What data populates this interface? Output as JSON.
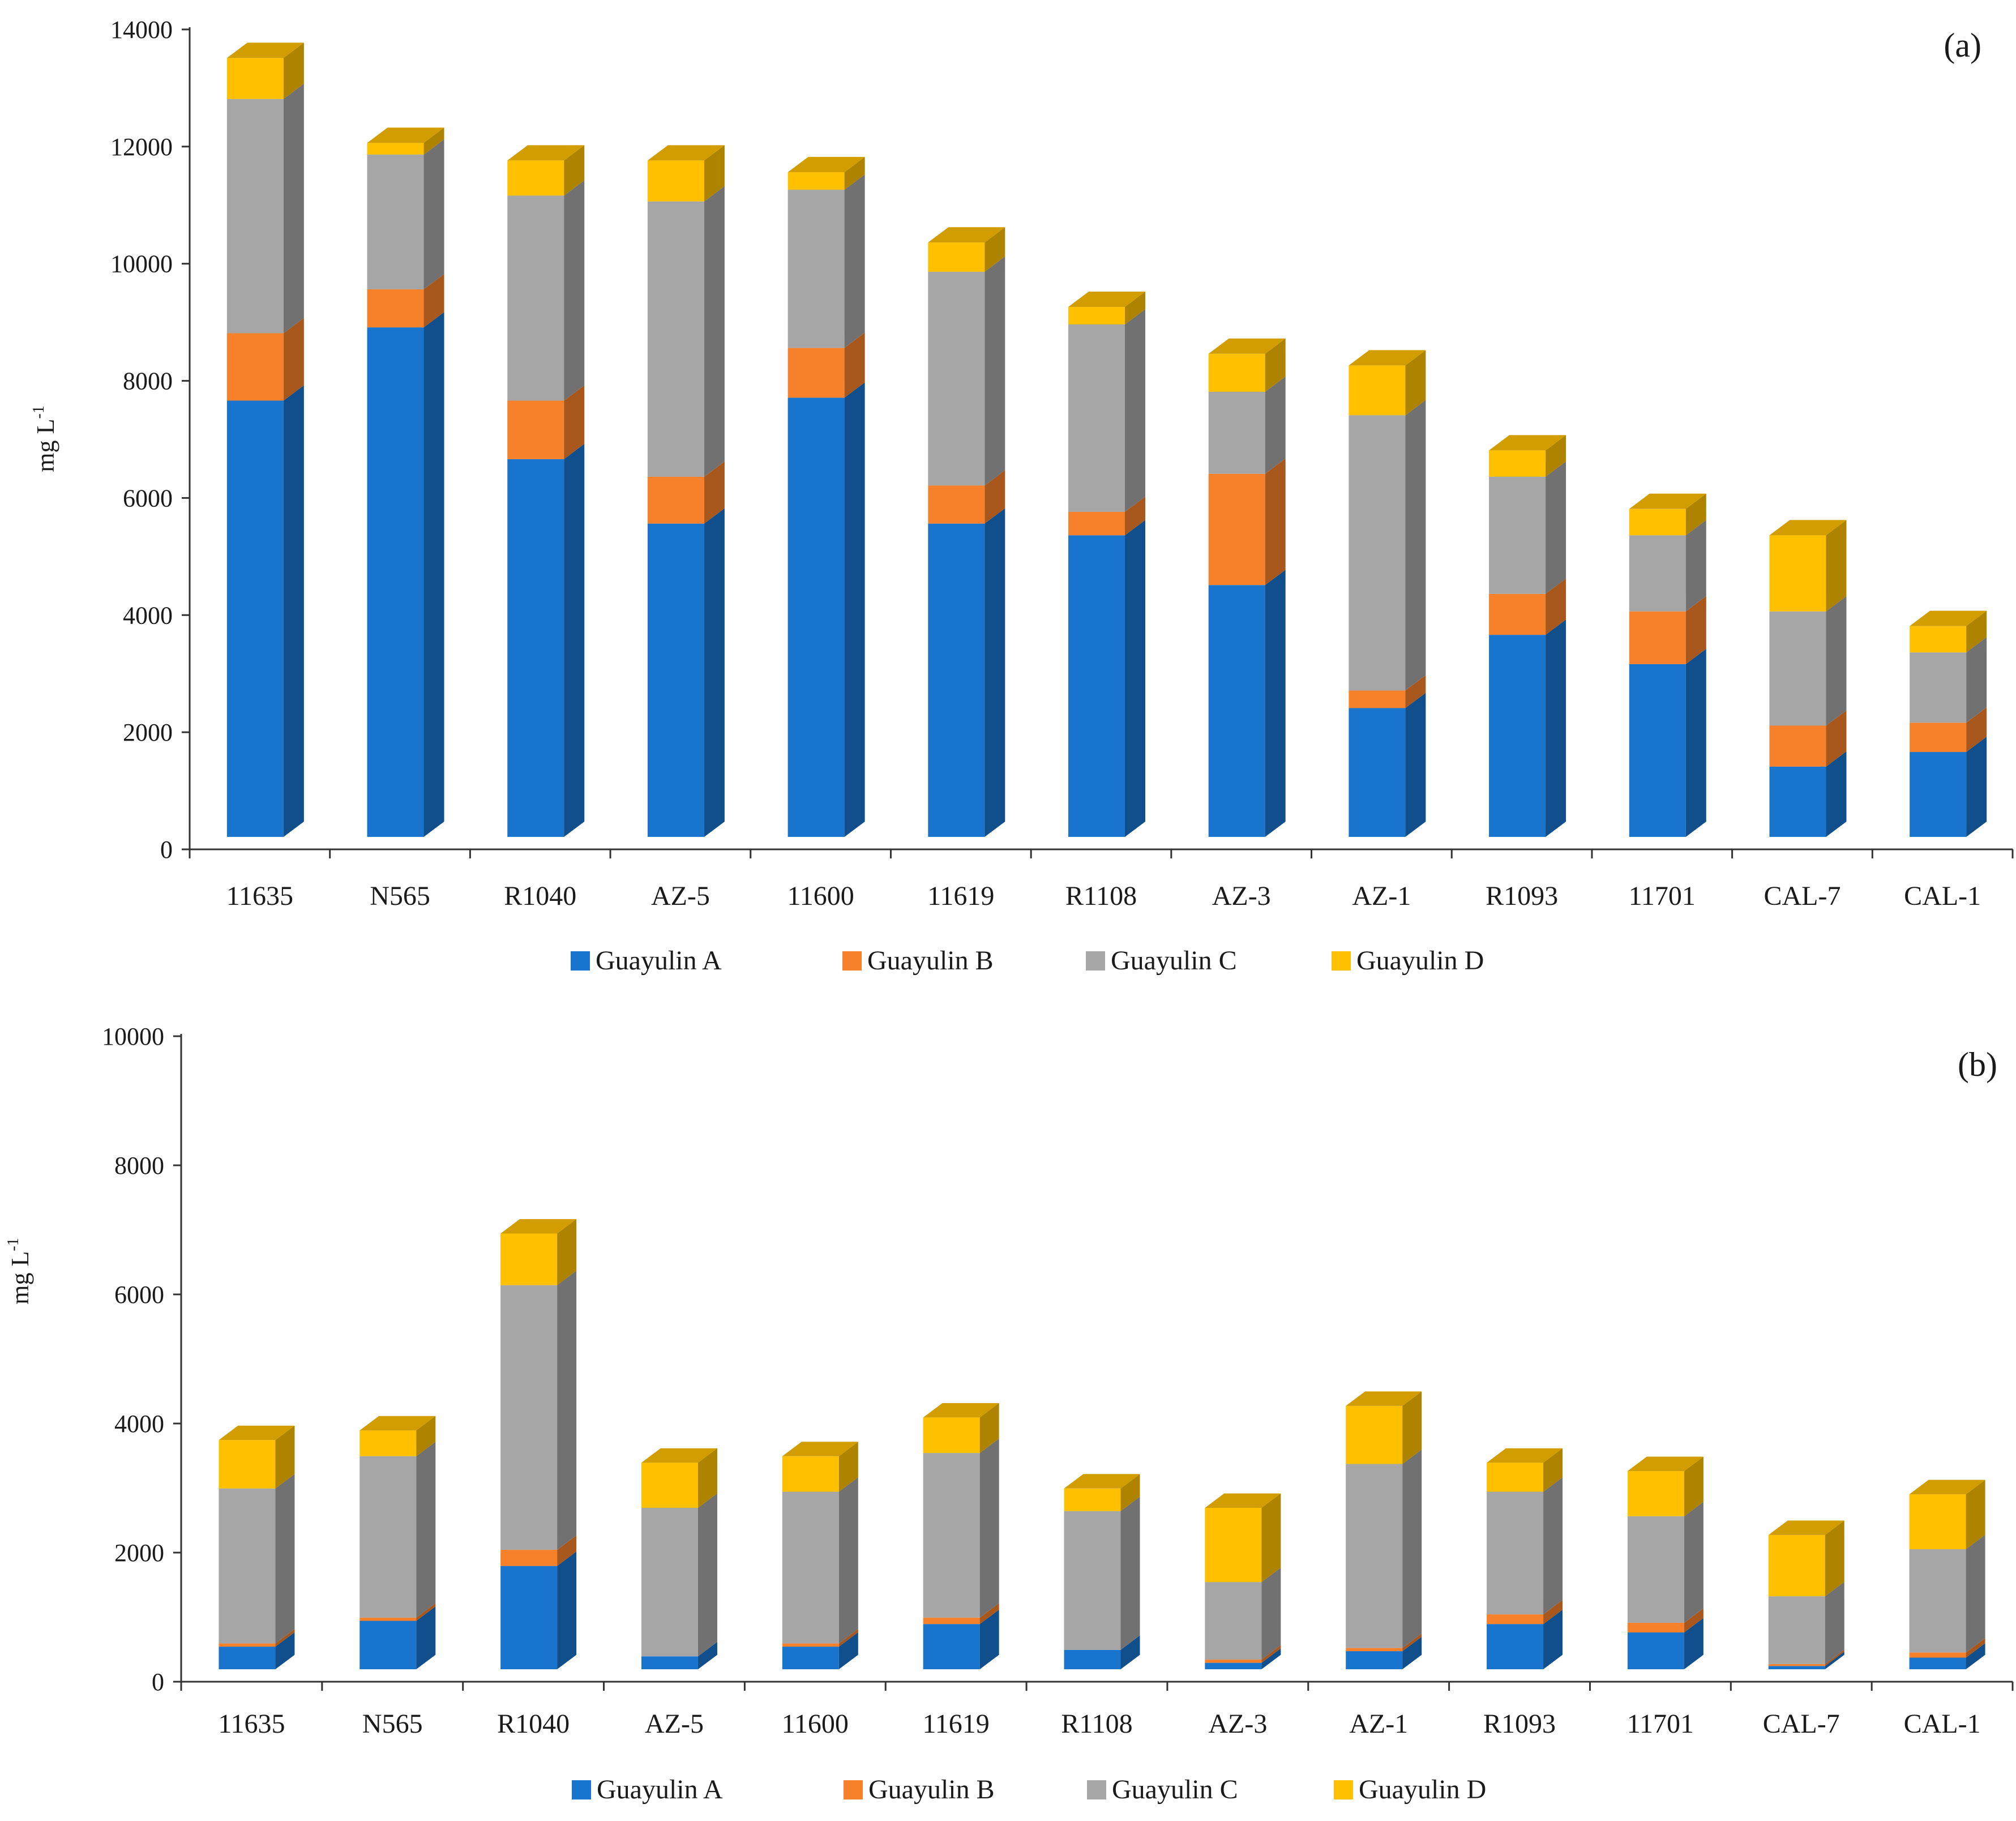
{
  "chart_data": [
    {
      "type": "bar",
      "stacked": true,
      "style": "3d",
      "panel_label": "(a)",
      "title": "",
      "xlabel": "",
      "ylabel": "mg L",
      "ylabel_superscript": "-1",
      "ylim": [
        0,
        14000
      ],
      "yticks": [
        "0",
        "2000",
        "4000",
        "6000",
        "8000",
        "10000",
        "12000",
        "14000"
      ],
      "grid": false,
      "legend_position": "bottom",
      "categories": [
        "11635",
        "N565",
        "R1040",
        "AZ-5",
        "11600",
        "11619",
        "R1108",
        "AZ-3",
        "AZ-1",
        "R1093",
        "11701",
        "CAL-7",
        "CAL-1"
      ],
      "series": [
        {
          "name": "Guayulin A",
          "color": "#1874cd",
          "values": [
            7450,
            8700,
            6450,
            5350,
            7500,
            5350,
            5150,
            4300,
            2200,
            3450,
            2950,
            1200,
            1450
          ]
        },
        {
          "name": "Guayulin B",
          "color": "#f7812a",
          "values": [
            1150,
            650,
            1000,
            800,
            850,
            650,
            400,
            1900,
            300,
            700,
            900,
            700,
            500
          ]
        },
        {
          "name": "Guayulin C",
          "color": "#a6a6a6",
          "values": [
            4000,
            2300,
            3500,
            4700,
            2700,
            3650,
            3200,
            1400,
            4700,
            2000,
            1300,
            1950,
            1200
          ]
        },
        {
          "name": "Guayulin D",
          "color": "#ffc000",
          "values": [
            700,
            200,
            600,
            700,
            300,
            500,
            300,
            650,
            850,
            450,
            450,
            1300,
            450
          ]
        }
      ]
    },
    {
      "type": "bar",
      "stacked": true,
      "style": "3d",
      "panel_label": "(b)",
      "title": "",
      "xlabel": "",
      "ylabel": "mg L",
      "ylabel_superscript": "-1",
      "ylim": [
        0,
        10000
      ],
      "yticks": [
        "0",
        "2000",
        "4000",
        "6000",
        "8000",
        "10000"
      ],
      "grid": false,
      "legend_position": "bottom",
      "categories": [
        "11635",
        "N565",
        "R1040",
        "AZ-5",
        "11600",
        "11619",
        "R1108",
        "AZ-3",
        "AZ-1",
        "R1093",
        "11701",
        "CAL-7",
        "CAL-1"
      ],
      "series": [
        {
          "name": "Guayulin A",
          "color": "#1874cd",
          "values": [
            350,
            750,
            1600,
            200,
            350,
            700,
            300,
            100,
            280,
            700,
            570,
            50,
            180
          ]
        },
        {
          "name": "Guayulin B",
          "color": "#f7812a",
          "values": [
            50,
            50,
            250,
            0,
            50,
            100,
            0,
            50,
            50,
            150,
            150,
            30,
            80
          ]
        },
        {
          "name": "Guayulin C",
          "color": "#a6a6a6",
          "values": [
            2400,
            2500,
            4100,
            2300,
            2350,
            2550,
            2150,
            1200,
            2850,
            1900,
            1650,
            1050,
            1600
          ]
        },
        {
          "name": "Guayulin D",
          "color": "#ffc000",
          "values": [
            750,
            400,
            800,
            700,
            550,
            550,
            350,
            1150,
            900,
            450,
            700,
            950,
            850
          ]
        }
      ]
    }
  ]
}
